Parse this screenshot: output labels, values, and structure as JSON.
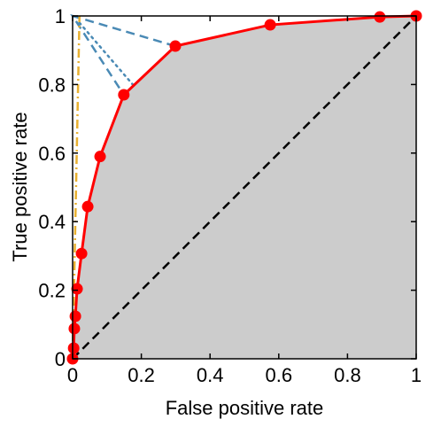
{
  "chart_data": {
    "type": "line",
    "xlabel": "False positive rate",
    "ylabel": "True positive rate",
    "xlim": [
      0,
      1
    ],
    "ylim": [
      0,
      1
    ],
    "xticks": [
      0,
      0.2,
      0.4,
      0.6,
      0.8,
      1
    ],
    "yticks": [
      0,
      0.2,
      0.4,
      0.6,
      0.8,
      1
    ],
    "series": [
      {
        "color": "#ff0000",
        "style": "solid",
        "markers": true,
        "fill": "#cccccc",
        "x": [
          0,
          0.003,
          0.005,
          0.008,
          0.013,
          0.026,
          0.044,
          0.08,
          0.149,
          0.299,
          0.575,
          0.894,
          1
        ],
        "values": [
          0,
          0.031,
          0.088,
          0.124,
          0.204,
          0.307,
          0.444,
          0.59,
          0.77,
          0.912,
          0.974,
          0.997,
          1
        ]
      },
      {
        "color": "#000000",
        "style": "dashed",
        "x": [
          0,
          1
        ],
        "values": [
          0,
          1
        ]
      },
      {
        "color": "#4a8ab5",
        "style": "dashed",
        "x": [
          0.299,
          0,
          0.149
        ],
        "values": [
          0.912,
          1,
          0.77
        ]
      },
      {
        "color": "#4a8ab5",
        "style": "dotted",
        "x": [
          0.02,
          0.175
        ],
        "values": [
          0.98,
          0.8
        ]
      },
      {
        "color": "#e8b030",
        "style": "dashdot",
        "x": [
          0,
          0.02
        ],
        "values": [
          0,
          1
        ]
      }
    ]
  }
}
